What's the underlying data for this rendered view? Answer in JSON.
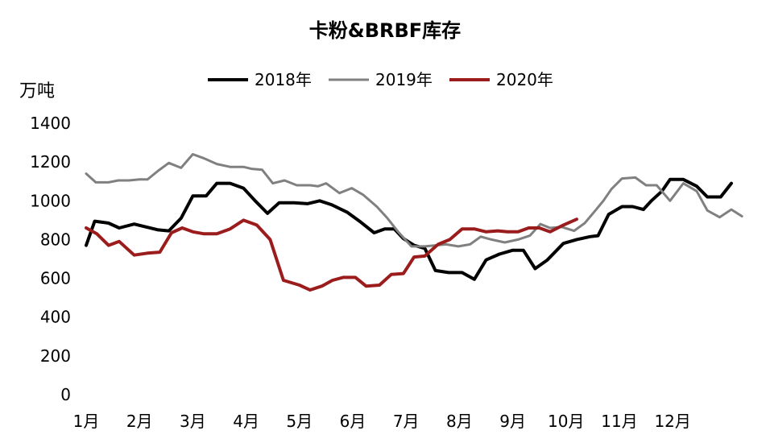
{
  "chart_data": {
    "type": "line",
    "title": "卡粉&BRBF库存",
    "ylabel": "万吨",
    "xlabel": "",
    "ylim": [
      0,
      1400
    ],
    "yticks": [
      0,
      200,
      400,
      600,
      800,
      1000,
      1200,
      1400
    ],
    "x_months": [
      "1月",
      "2月",
      "3月",
      "4月",
      "5月",
      "6月",
      "7月",
      "8月",
      "9月",
      "10月",
      "11月",
      "12月"
    ],
    "xlim": [
      1,
      13.1
    ],
    "grid": false,
    "legend_position": "top",
    "series": [
      {
        "name": "2018年",
        "color": "#000000",
        "points": [
          [
            1.0,
            770
          ],
          [
            1.16,
            895
          ],
          [
            1.42,
            885
          ],
          [
            1.62,
            860
          ],
          [
            1.9,
            880
          ],
          [
            2.35,
            850
          ],
          [
            2.55,
            845
          ],
          [
            2.78,
            910
          ],
          [
            3.0,
            1025
          ],
          [
            3.25,
            1025
          ],
          [
            3.45,
            1090
          ],
          [
            3.7,
            1090
          ],
          [
            3.95,
            1065
          ],
          [
            4.17,
            1000
          ],
          [
            4.4,
            935
          ],
          [
            4.62,
            990
          ],
          [
            4.9,
            990
          ],
          [
            5.15,
            985
          ],
          [
            5.38,
            1000
          ],
          [
            5.6,
            980
          ],
          [
            5.9,
            940
          ],
          [
            6.15,
            890
          ],
          [
            6.4,
            835
          ],
          [
            6.6,
            855
          ],
          [
            6.78,
            855
          ],
          [
            6.95,
            805
          ],
          [
            7.15,
            770
          ],
          [
            7.35,
            755
          ],
          [
            7.55,
            640
          ],
          [
            7.8,
            630
          ],
          [
            8.05,
            630
          ],
          [
            8.28,
            595
          ],
          [
            8.5,
            695
          ],
          [
            8.75,
            725
          ],
          [
            9.0,
            745
          ],
          [
            9.2,
            745
          ],
          [
            9.42,
            650
          ],
          [
            9.65,
            695
          ],
          [
            9.95,
            780
          ],
          [
            10.2,
            800
          ],
          [
            10.45,
            815
          ],
          [
            10.6,
            820
          ],
          [
            10.8,
            930
          ],
          [
            11.05,
            970
          ],
          [
            11.25,
            970
          ],
          [
            11.45,
            955
          ],
          [
            11.6,
            1000
          ],
          [
            11.8,
            1050
          ],
          [
            11.95,
            1110
          ],
          [
            12.2,
            1110
          ],
          [
            12.45,
            1075
          ],
          [
            12.65,
            1020
          ],
          [
            12.9,
            1020
          ],
          [
            13.1,
            1090
          ]
        ]
      },
      {
        "name": "2019年",
        "color": "#808080",
        "points": [
          [
            1.0,
            1140
          ],
          [
            1.18,
            1095
          ],
          [
            1.42,
            1095
          ],
          [
            1.6,
            1105
          ],
          [
            1.8,
            1105
          ],
          [
            2.0,
            1110
          ],
          [
            2.15,
            1110
          ],
          [
            2.35,
            1155
          ],
          [
            2.55,
            1195
          ],
          [
            2.78,
            1170
          ],
          [
            3.0,
            1240
          ],
          [
            3.2,
            1220
          ],
          [
            3.45,
            1190
          ],
          [
            3.7,
            1175
          ],
          [
            3.95,
            1175
          ],
          [
            4.1,
            1165
          ],
          [
            4.3,
            1160
          ],
          [
            4.5,
            1090
          ],
          [
            4.72,
            1105
          ],
          [
            4.95,
            1080
          ],
          [
            5.2,
            1080
          ],
          [
            5.35,
            1075
          ],
          [
            5.5,
            1090
          ],
          [
            5.75,
            1040
          ],
          [
            5.98,
            1065
          ],
          [
            6.2,
            1030
          ],
          [
            6.45,
            970
          ],
          [
            6.65,
            910
          ],
          [
            6.85,
            840
          ],
          [
            7.1,
            765
          ],
          [
            7.35,
            765
          ],
          [
            7.55,
            770
          ],
          [
            7.75,
            775
          ],
          [
            7.98,
            765
          ],
          [
            8.2,
            775
          ],
          [
            8.4,
            815
          ],
          [
            8.6,
            800
          ],
          [
            8.85,
            785
          ],
          [
            9.1,
            800
          ],
          [
            9.32,
            820
          ],
          [
            9.52,
            880
          ],
          [
            9.7,
            860
          ],
          [
            9.92,
            865
          ],
          [
            10.15,
            845
          ],
          [
            10.35,
            885
          ],
          [
            10.55,
            950
          ],
          [
            10.7,
            1000
          ],
          [
            10.85,
            1060
          ],
          [
            11.05,
            1115
          ],
          [
            11.3,
            1120
          ],
          [
            11.5,
            1080
          ],
          [
            11.7,
            1080
          ],
          [
            11.95,
            1000
          ],
          [
            12.2,
            1090
          ],
          [
            12.45,
            1050
          ],
          [
            12.65,
            950
          ],
          [
            12.88,
            915
          ],
          [
            13.1,
            955
          ],
          [
            13.3,
            920
          ]
        ]
      },
      {
        "name": "2020年",
        "color": "#9b1c1c",
        "points": [
          [
            1.0,
            860
          ],
          [
            1.2,
            830
          ],
          [
            1.42,
            770
          ],
          [
            1.62,
            790
          ],
          [
            1.9,
            720
          ],
          [
            2.15,
            730
          ],
          [
            2.38,
            735
          ],
          [
            2.6,
            835
          ],
          [
            2.8,
            860
          ],
          [
            3.0,
            840
          ],
          [
            3.2,
            830
          ],
          [
            3.45,
            830
          ],
          [
            3.7,
            855
          ],
          [
            3.95,
            900
          ],
          [
            4.2,
            875
          ],
          [
            4.45,
            800
          ],
          [
            4.7,
            590
          ],
          [
            5.0,
            565
          ],
          [
            5.2,
            540
          ],
          [
            5.42,
            560
          ],
          [
            5.62,
            590
          ],
          [
            5.82,
            605
          ],
          [
            6.05,
            605
          ],
          [
            6.25,
            560
          ],
          [
            6.5,
            565
          ],
          [
            6.72,
            620
          ],
          [
            6.95,
            625
          ],
          [
            7.15,
            710
          ],
          [
            7.35,
            715
          ],
          [
            7.6,
            775
          ],
          [
            7.82,
            800
          ],
          [
            8.05,
            855
          ],
          [
            8.28,
            855
          ],
          [
            8.5,
            840
          ],
          [
            8.72,
            845
          ],
          [
            8.9,
            840
          ],
          [
            9.1,
            840
          ],
          [
            9.3,
            860
          ],
          [
            9.5,
            860
          ],
          [
            9.7,
            840
          ],
          [
            9.95,
            875
          ],
          [
            10.2,
            905
          ]
        ]
      }
    ]
  }
}
